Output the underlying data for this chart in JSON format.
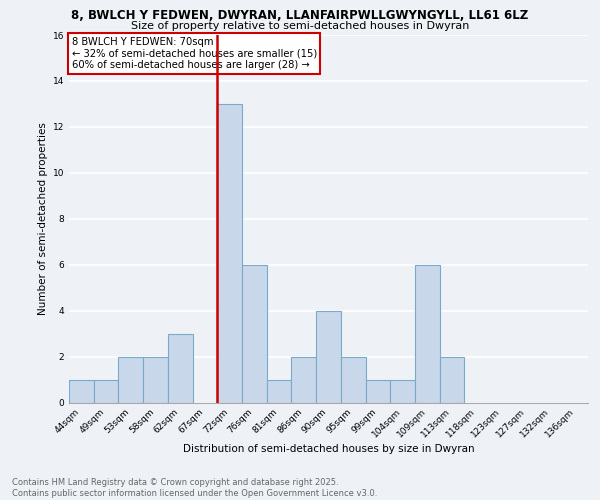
{
  "title_line1": "8, BWLCH Y FEDWEN, DWYRAN, LLANFAIRPWLLGWYNGYLL, LL61 6LZ",
  "title_line2": "Size of property relative to semi-detached houses in Dwyran",
  "xlabel": "Distribution of semi-detached houses by size in Dwyran",
  "ylabel": "Number of semi-detached properties",
  "categories": [
    "44sqm",
    "49sqm",
    "53sqm",
    "58sqm",
    "62sqm",
    "67sqm",
    "72sqm",
    "76sqm",
    "81sqm",
    "86sqm",
    "90sqm",
    "95sqm",
    "99sqm",
    "104sqm",
    "109sqm",
    "113sqm",
    "118sqm",
    "123sqm",
    "127sqm",
    "132sqm",
    "136sqm"
  ],
  "values": [
    1,
    1,
    2,
    2,
    3,
    0,
    13,
    6,
    1,
    2,
    4,
    2,
    1,
    1,
    6,
    2,
    0,
    0,
    0,
    0,
    0
  ],
  "bar_color": "#c8d8ea",
  "bar_edge_color": "#7aaac8",
  "highlight_line_idx": 6,
  "highlight_line_color": "#cc0000",
  "annotation_title": "8 BWLCH Y FEDWEN: 70sqm",
  "annotation_line1": "← 32% of semi-detached houses are smaller (15)",
  "annotation_line2": "60% of semi-detached houses are larger (28) →",
  "annotation_box_color": "#ffffff",
  "annotation_box_edge_color": "#cc0000",
  "ylim": [
    0,
    16
  ],
  "yticks": [
    0,
    2,
    4,
    6,
    8,
    10,
    12,
    14,
    16
  ],
  "footer_line1": "Contains HM Land Registry data © Crown copyright and database right 2025.",
  "footer_line2": "Contains public sector information licensed under the Open Government Licence v3.0.",
  "bg_color": "#eef2f7",
  "grid_color": "#ffffff",
  "title_fontsize": 8.5,
  "subtitle_fontsize": 8.0,
  "axis_label_fontsize": 7.5,
  "tick_fontsize": 6.5,
  "annotation_fontsize": 7.2,
  "footer_fontsize": 6.0
}
